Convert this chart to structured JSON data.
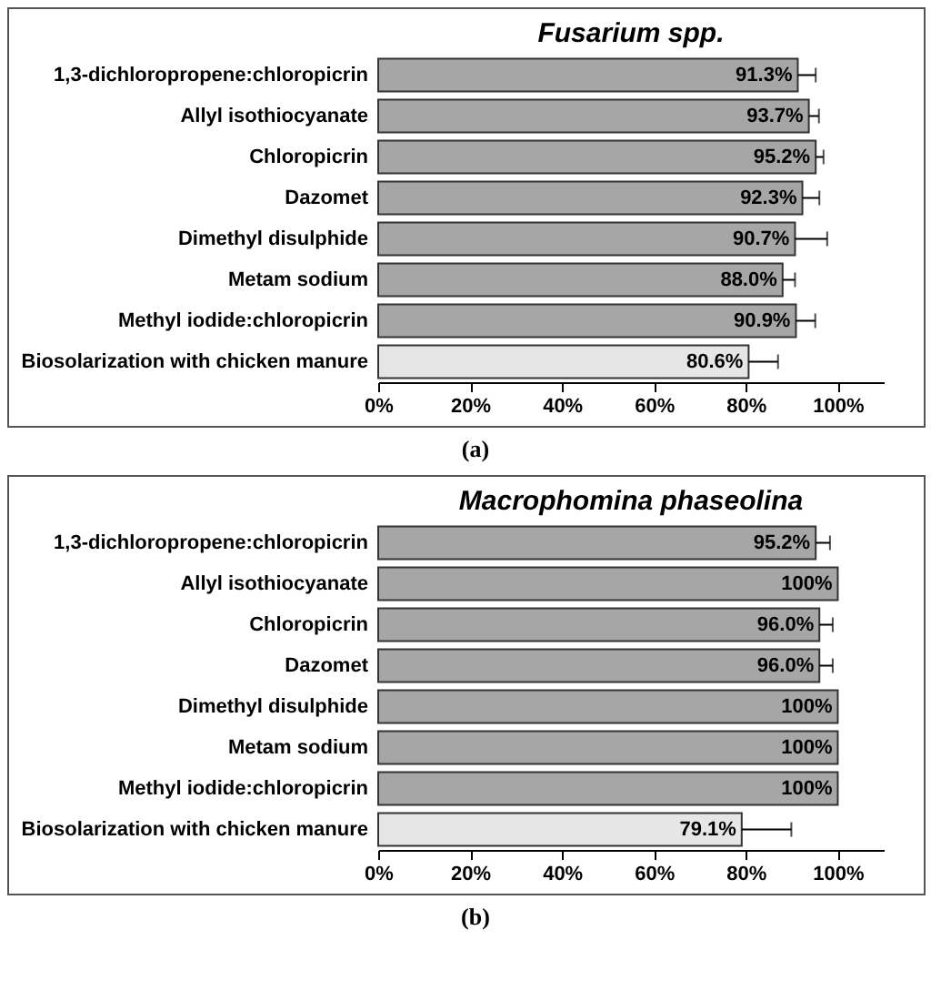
{
  "chart_data": [
    {
      "type": "bar",
      "orientation": "horizontal",
      "title": "Fusarium spp.",
      "categories": [
        "1,3-dichloropropene:chloropicrin",
        "Allyl isothiocyanate",
        "Chloropicrin",
        "Dazomet",
        "Dimethyl disulphide",
        "Metam sodium",
        "Methyl iodide:chloropicrin",
        "Biosolarization with chicken manure"
      ],
      "values": [
        91.3,
        93.7,
        95.2,
        92.3,
        90.7,
        88.0,
        90.9,
        80.6
      ],
      "errors": [
        3.9,
        2.2,
        1.7,
        3.7,
        7,
        2.7,
        4.2,
        6.4
      ],
      "value_labels": [
        "91.3%",
        "93.7%",
        "95.2%",
        "92.3%",
        "90.7%",
        "88.0%",
        "90.9%",
        "80.6%"
      ],
      "colors": [
        "#a6a6a6",
        "#a6a6a6",
        "#a6a6a6",
        "#a6a6a6",
        "#a6a6a6",
        "#a6a6a6",
        "#a6a6a6",
        "#e6e6e6"
      ],
      "xlim": [
        0,
        110
      ],
      "xticks": [
        {
          "value": 0,
          "label": "0%"
        },
        {
          "value": 20,
          "label": "20%"
        },
        {
          "value": 40,
          "label": "40%"
        },
        {
          "value": 60,
          "label": "60%"
        },
        {
          "value": 80,
          "label": "80%"
        },
        {
          "value": 100,
          "label": "100%"
        }
      ],
      "grid": false,
      "annotations": [
        "(a)"
      ]
    },
    {
      "type": "bar",
      "orientation": "horizontal",
      "title": "Macrophomina phaseolina",
      "categories": [
        "1,3-dichloropropene:chloropicrin",
        "Allyl isothiocyanate",
        "Chloropicrin",
        "Dazomet",
        "Dimethyl disulphide",
        "Metam sodium",
        "Methyl iodide:chloropicrin",
        "Biosolarization with chicken manure"
      ],
      "values": [
        95.2,
        100,
        96.0,
        96.0,
        100,
        100,
        100,
        79.1
      ],
      "errors": [
        3.1,
        null,
        2.9,
        2.9,
        null,
        null,
        null,
        10.8
      ],
      "value_labels": [
        "95.2%",
        "100%",
        "96.0%",
        "96.0%",
        "100%",
        "100%",
        "100%",
        "79.1%"
      ],
      "colors": [
        "#a6a6a6",
        "#a6a6a6",
        "#a6a6a6",
        "#a6a6a6",
        "#a6a6a6",
        "#a6a6a6",
        "#a6a6a6",
        "#e6e6e6"
      ],
      "xlim": [
        0,
        110
      ],
      "xticks": [
        {
          "value": 0,
          "label": "0%"
        },
        {
          "value": 20,
          "label": "20%"
        },
        {
          "value": 40,
          "label": "40%"
        },
        {
          "value": 60,
          "label": "60%"
        },
        {
          "value": 80,
          "label": "80%"
        },
        {
          "value": 100,
          "label": "100%"
        }
      ],
      "grid": false,
      "annotations": [
        "(b)"
      ]
    }
  ]
}
